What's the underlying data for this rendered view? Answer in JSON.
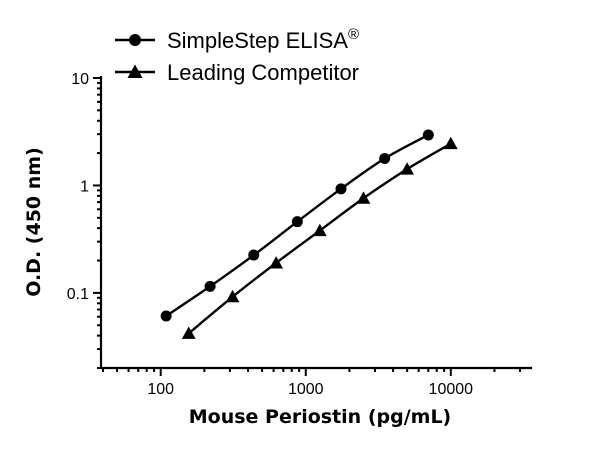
{
  "chart_data": {
    "type": "line",
    "title": "",
    "xlabel": "Mouse Periostin (pg/mL)",
    "ylabel": "O.D. (450 nm)",
    "x_scale": "log",
    "y_scale": "log",
    "xlim": [
      40,
      30000
    ],
    "ylim": [
      0.02,
      10
    ],
    "x_ticks": [
      100,
      1000,
      10000
    ],
    "x_tick_labels": [
      "100",
      "1000",
      "10000"
    ],
    "y_ticks": [
      0.1,
      1,
      10
    ],
    "y_tick_labels": [
      "0.1",
      "1",
      "10"
    ],
    "grid": false,
    "legend_position": "top-left",
    "series": [
      {
        "name": "SimpleStep ELISA",
        "name_superscript": "®",
        "marker": "circle",
        "color": "#000000",
        "x": [
          109,
          219,
          438,
          875,
          1750,
          3500,
          7000
        ],
        "y": [
          0.061,
          0.115,
          0.225,
          0.46,
          0.93,
          1.78,
          2.95
        ]
      },
      {
        "name": "Leading Competitor",
        "marker": "triangle",
        "color": "#000000",
        "x": [
          156,
          313,
          625,
          1250,
          2500,
          5000,
          10000
        ],
        "y": [
          0.042,
          0.092,
          0.19,
          0.38,
          0.76,
          1.42,
          2.45
        ]
      }
    ]
  }
}
